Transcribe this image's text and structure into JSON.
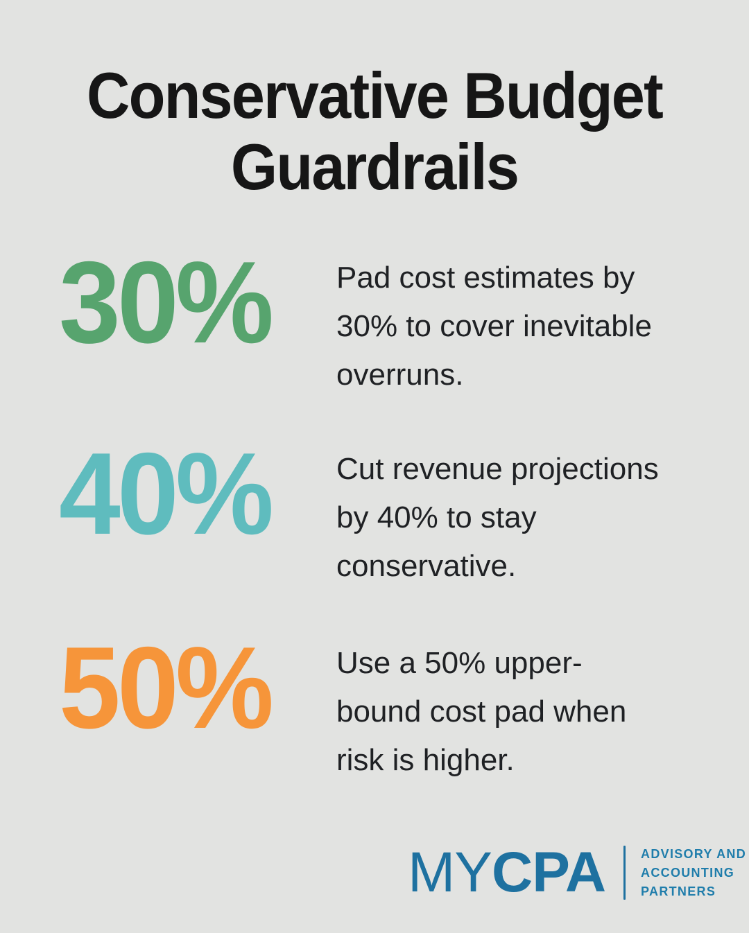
{
  "title": {
    "line1": "Conservative Budget",
    "line2": "Guardrails"
  },
  "stats": [
    {
      "value": "30%",
      "color": "#57a46e",
      "description": "Pad cost estimates by 30% to cover inevitable overruns.",
      "lines": [
        "Pad cost estimates by",
        "30% to cover inevitable",
        "overruns."
      ]
    },
    {
      "value": "40%",
      "color": "#5fbcbe",
      "description": "Cut revenue projections by 40% to stay conservative.",
      "lines": [
        "Cut revenue projections",
        "by 40% to stay",
        "conservative."
      ]
    },
    {
      "value": "50%",
      "color": "#f6953a",
      "description": "Use a 50% upper-bound cost pad when risk is higher.",
      "lines": [
        "Use a 50% upper-",
        "bound cost pad when",
        "risk is higher."
      ]
    }
  ],
  "logo": {
    "brand_light": "MY",
    "brand_bold": "CPA",
    "brand_color": "#1e71a0",
    "divider_color": "#1e71a0",
    "tagline_color": "#1f7dab",
    "tagline_line1": "ADVISORY AND",
    "tagline_line2": "ACCOUNTING",
    "tagline_line3": "PARTNERS"
  },
  "colors": {
    "background": "#e2e3e1",
    "title_text": "#161616",
    "body_text": "#1f2124"
  }
}
